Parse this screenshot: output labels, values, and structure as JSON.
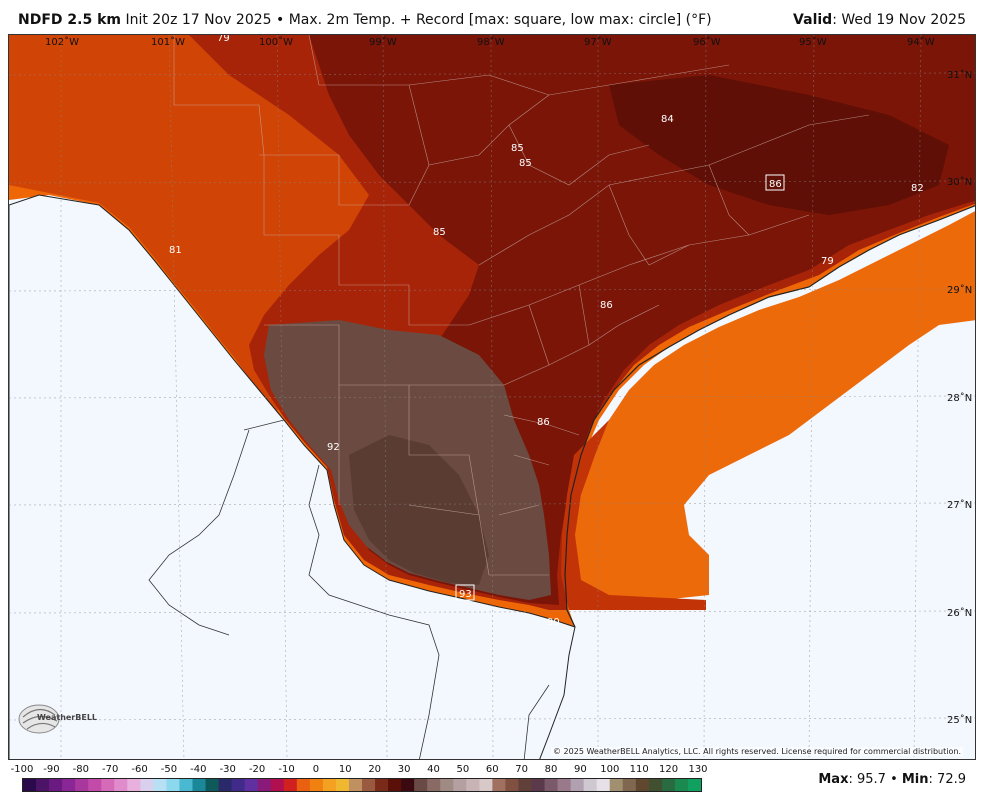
{
  "header": {
    "model": "NDFD 2.5 km",
    "description": "Init 20z 17 Nov 2025 • Max. 2m Temp. + Record [max: square, low max: circle] (°F)",
    "valid_label": "Valid",
    "valid_value": ": Wed 19 Nov 2025"
  },
  "map": {
    "lon_labels": [
      "102˚W",
      "101˚W",
      "100˚W",
      "99˚W",
      "98˚W",
      "97˚W",
      "96˚W",
      "95˚W",
      "94˚W"
    ],
    "lat_labels": [
      "31˚N",
      "30˚N",
      "29˚N",
      "28˚N",
      "27˚N",
      "26˚N",
      "25˚N"
    ],
    "point_values": [
      "79",
      "85",
      "85",
      "84",
      "86",
      "82",
      "81",
      "85",
      "79",
      "86",
      "86",
      "92",
      "93",
      "90"
    ],
    "copyright": "© 2025 WeatherBELL Analytics, LLC. All rights reserved. License required for commercial distribution.",
    "logo_text": "WeatherBELL"
  },
  "colorbar": {
    "ticks": [
      "-100",
      "-90",
      "-80",
      "-70",
      "-60",
      "-50",
      "-40",
      "-30",
      "-20",
      "-10",
      "0",
      "10",
      "20",
      "30",
      "40",
      "50",
      "60",
      "70",
      "80",
      "90",
      "100",
      "110",
      "120",
      "130"
    ]
  },
  "stats": {
    "max_label": "Max",
    "max_value": ": 95.7",
    "separator": " • ",
    "min_label": "Min",
    "min_value": ": 72.9"
  },
  "colors": {
    "ocean": "#f3f7fe",
    "brown_hot": "#6b4a40",
    "dark_red": "#7a1508",
    "red": "#a52508",
    "orange_red": "#d14606",
    "orange": "#f26a06"
  }
}
